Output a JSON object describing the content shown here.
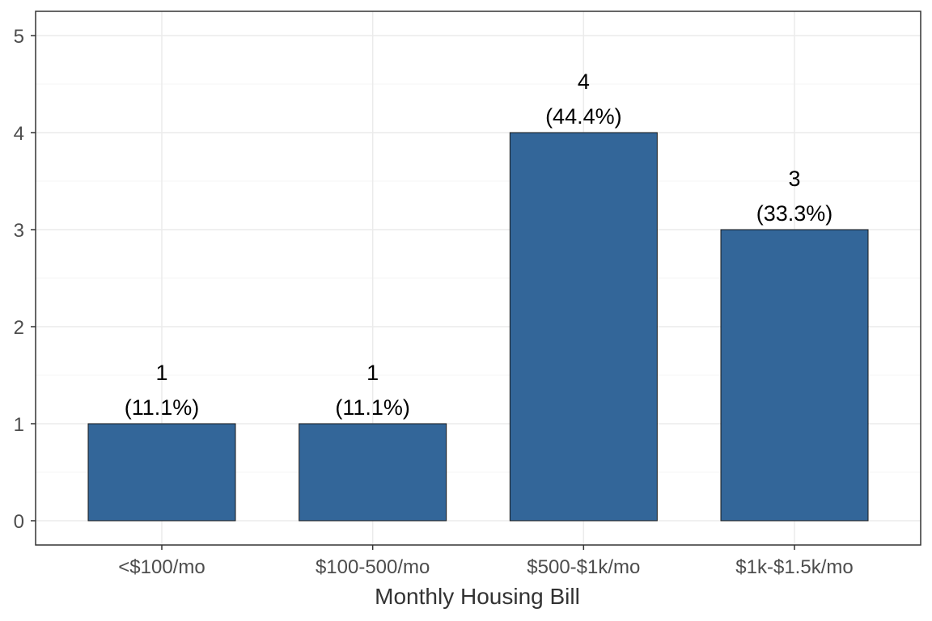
{
  "chart_data": {
    "type": "bar",
    "title": "",
    "xlabel": "Monthly Housing Bill",
    "ylabel": "",
    "categories": [
      "<$100/mo",
      "$100-500/mo",
      "$500-$1k/mo",
      "$1k-$1.5k/mo"
    ],
    "values": [
      1,
      1,
      4,
      3
    ],
    "value_labels": [
      "1",
      "1",
      "4",
      "3"
    ],
    "percent_labels": [
      "(11.1%)",
      "(11.1%)",
      "(44.4%)",
      "(33.3%)"
    ],
    "y_ticks": [
      "0",
      "1",
      "2",
      "3",
      "4",
      "5"
    ],
    "ylim": [
      0,
      5
    ],
    "grid": true,
    "legend": "none",
    "colors": {
      "bar_fill": "#336699",
      "bar_stroke": "#1a1a1a",
      "grid_major": "#ebebeb",
      "grid_minor": "#f5f5f5",
      "panel_border": "#333333"
    }
  }
}
